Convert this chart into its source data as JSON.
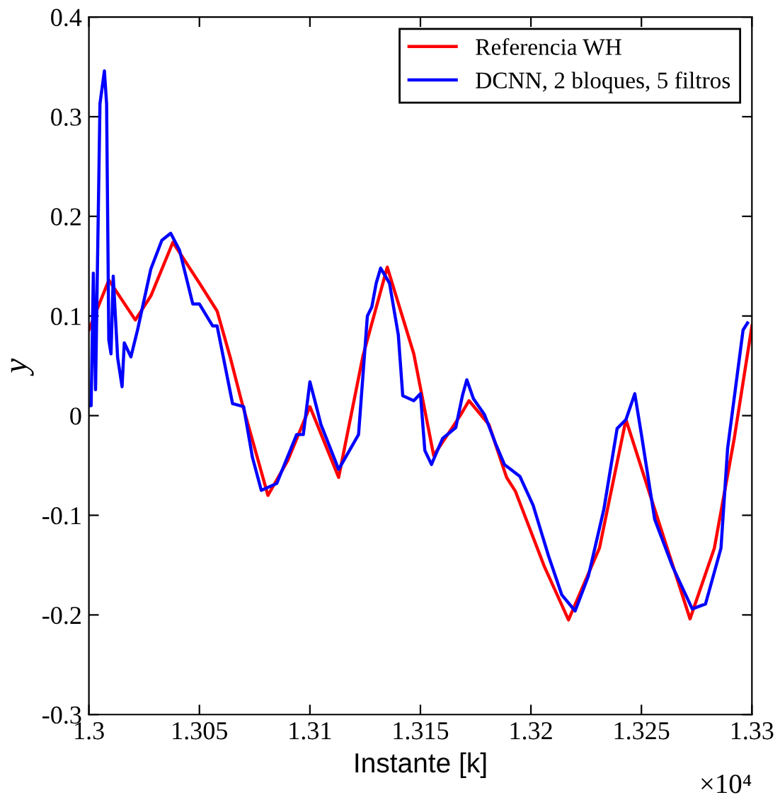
{
  "chart_data": {
    "type": "line",
    "xlabel": "Instante [k]",
    "ylabel": "y",
    "annotations": [
      "×10⁴"
    ],
    "xlim": [
      1.3,
      1.33
    ],
    "xticks": [
      1.3,
      1.305,
      1.31,
      1.315,
      1.32,
      1.325,
      1.33
    ],
    "ylim": [
      -0.3,
      0.4
    ],
    "yticks": [
      -0.3,
      -0.2,
      -0.1,
      0,
      0.1,
      0.2,
      0.3,
      0.4
    ],
    "grid": false,
    "legend": "top right",
    "marker": "none",
    "line_style": "solid",
    "series": [
      {
        "name": "Referencia WH",
        "color": "#ff0000",
        "x": [
          1.3,
          1.3009,
          1.3021,
          1.3028,
          1.3038,
          1.305,
          1.3058,
          1.3064,
          1.3069,
          1.3081,
          1.309,
          1.31,
          1.3113,
          1.3124,
          1.3135,
          1.3147,
          1.3156,
          1.3168,
          1.3172,
          1.3181,
          1.3189,
          1.3193,
          1.3206,
          1.3217,
          1.3231,
          1.3243,
          1.3256,
          1.3272,
          1.3283,
          1.3292,
          1.33
        ],
        "values": [
          0.086,
          0.136,
          0.096,
          0.12,
          0.174,
          0.133,
          0.105,
          0.058,
          0.015,
          -0.08,
          -0.045,
          0.009,
          -0.062,
          0.06,
          0.149,
          0.062,
          -0.04,
          0.0,
          0.015,
          -0.009,
          -0.062,
          -0.076,
          -0.151,
          -0.205,
          -0.133,
          -0.004,
          -0.094,
          -0.204,
          -0.133,
          -0.023,
          0.09
        ]
      },
      {
        "name": "DCNN, 2 bloques, 5 filtros",
        "color": "#0000ff",
        "x": [
          1.3,
          1.3001,
          1.3002,
          1.3003,
          1.3005,
          1.3007,
          1.3008,
          1.3009,
          1.301,
          1.3011,
          1.3013,
          1.3015,
          1.3016,
          1.3019,
          1.3022,
          1.3028,
          1.3033,
          1.3037,
          1.3041,
          1.3047,
          1.305,
          1.3056,
          1.3058,
          1.3065,
          1.307,
          1.3074,
          1.3078,
          1.3085,
          1.3094,
          1.3097,
          1.31,
          1.3102,
          1.3105,
          1.3113,
          1.3122,
          1.3126,
          1.3128,
          1.313,
          1.3132,
          1.3136,
          1.314,
          1.3142,
          1.3147,
          1.315,
          1.3152,
          1.3155,
          1.316,
          1.3166,
          1.3169,
          1.3171,
          1.3174,
          1.3179,
          1.3184,
          1.3188,
          1.3195,
          1.3201,
          1.3208,
          1.3214,
          1.322,
          1.3226,
          1.3233,
          1.3239,
          1.3243,
          1.3247,
          1.325,
          1.3256,
          1.3264,
          1.3273,
          1.3279,
          1.3286,
          1.3289,
          1.3296,
          1.3298
        ],
        "values": [
          0.01,
          0.01,
          0.143,
          0.026,
          0.313,
          0.346,
          0.313,
          0.076,
          0.062,
          0.14,
          0.058,
          0.029,
          0.073,
          0.059,
          0.086,
          0.147,
          0.176,
          0.183,
          0.166,
          0.112,
          0.112,
          0.09,
          0.09,
          0.012,
          0.009,
          -0.042,
          -0.075,
          -0.068,
          -0.019,
          -0.019,
          0.034,
          0.017,
          -0.009,
          -0.054,
          -0.019,
          0.1,
          0.109,
          0.133,
          0.148,
          0.133,
          0.081,
          0.02,
          0.015,
          0.022,
          -0.035,
          -0.049,
          -0.023,
          -0.012,
          0.02,
          0.036,
          0.017,
          0.001,
          -0.028,
          -0.049,
          -0.061,
          -0.09,
          -0.141,
          -0.18,
          -0.196,
          -0.161,
          -0.094,
          -0.013,
          -0.004,
          0.022,
          -0.019,
          -0.104,
          -0.151,
          -0.194,
          -0.189,
          -0.133,
          -0.033,
          0.086,
          0.093
        ]
      }
    ]
  }
}
